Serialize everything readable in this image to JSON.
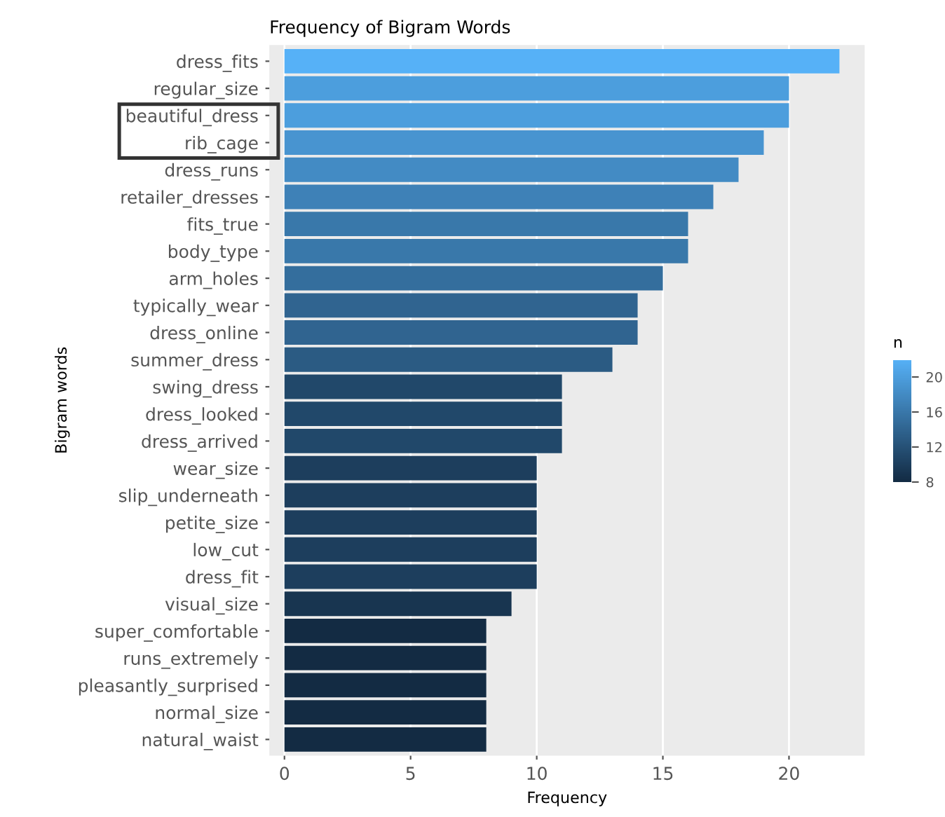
{
  "chart_data": {
    "type": "bar",
    "orientation": "horizontal",
    "title": "Frequency of Bigram Words",
    "xlabel": "Frequency",
    "ylabel": "Bigram words",
    "clabel": "n",
    "categories": [
      "dress_fits",
      "regular_size",
      "beautiful_dress",
      "rib_cage",
      "dress_runs",
      "retailer_dresses",
      "fits_true",
      "body_type",
      "arm_holes",
      "typically_wear",
      "dress_online",
      "summer_dress",
      "swing_dress",
      "dress_looked",
      "dress_arrived",
      "wear_size",
      "slip_underneath",
      "petite_size",
      "low_cut",
      "dress_fit",
      "visual_size",
      "super_comfortable",
      "runs_extremely",
      "pleasantly_surprised",
      "normal_size",
      "natural_waist"
    ],
    "values": [
      22,
      20,
      20,
      19,
      18,
      17,
      16,
      16,
      15,
      14,
      14,
      13,
      11,
      11,
      11,
      10,
      10,
      10,
      10,
      10,
      9,
      8,
      8,
      8,
      8,
      8
    ],
    "colors": [
      "#56b1f7",
      "#4c9edd",
      "#4c9edd",
      "#4894d0",
      "#438bc4",
      "#3e81b7",
      "#3978aa",
      "#3978aa",
      "#346e9d",
      "#306490",
      "#306490",
      "#2b5b83",
      "#21486a",
      "#21486a",
      "#21486a",
      "#1d3e5d",
      "#1d3e5d",
      "#1d3e5d",
      "#1d3e5d",
      "#1d3e5d",
      "#183550",
      "#132b43",
      "#132b43",
      "#132b43",
      "#132b43",
      "#132b43"
    ],
    "xlim": [
      -0.6,
      23
    ],
    "xticks": [
      0,
      5,
      10,
      15,
      20
    ],
    "clim": [
      8,
      22
    ],
    "cticks": [
      8,
      12,
      16,
      20
    ],
    "grid": true
  }
}
